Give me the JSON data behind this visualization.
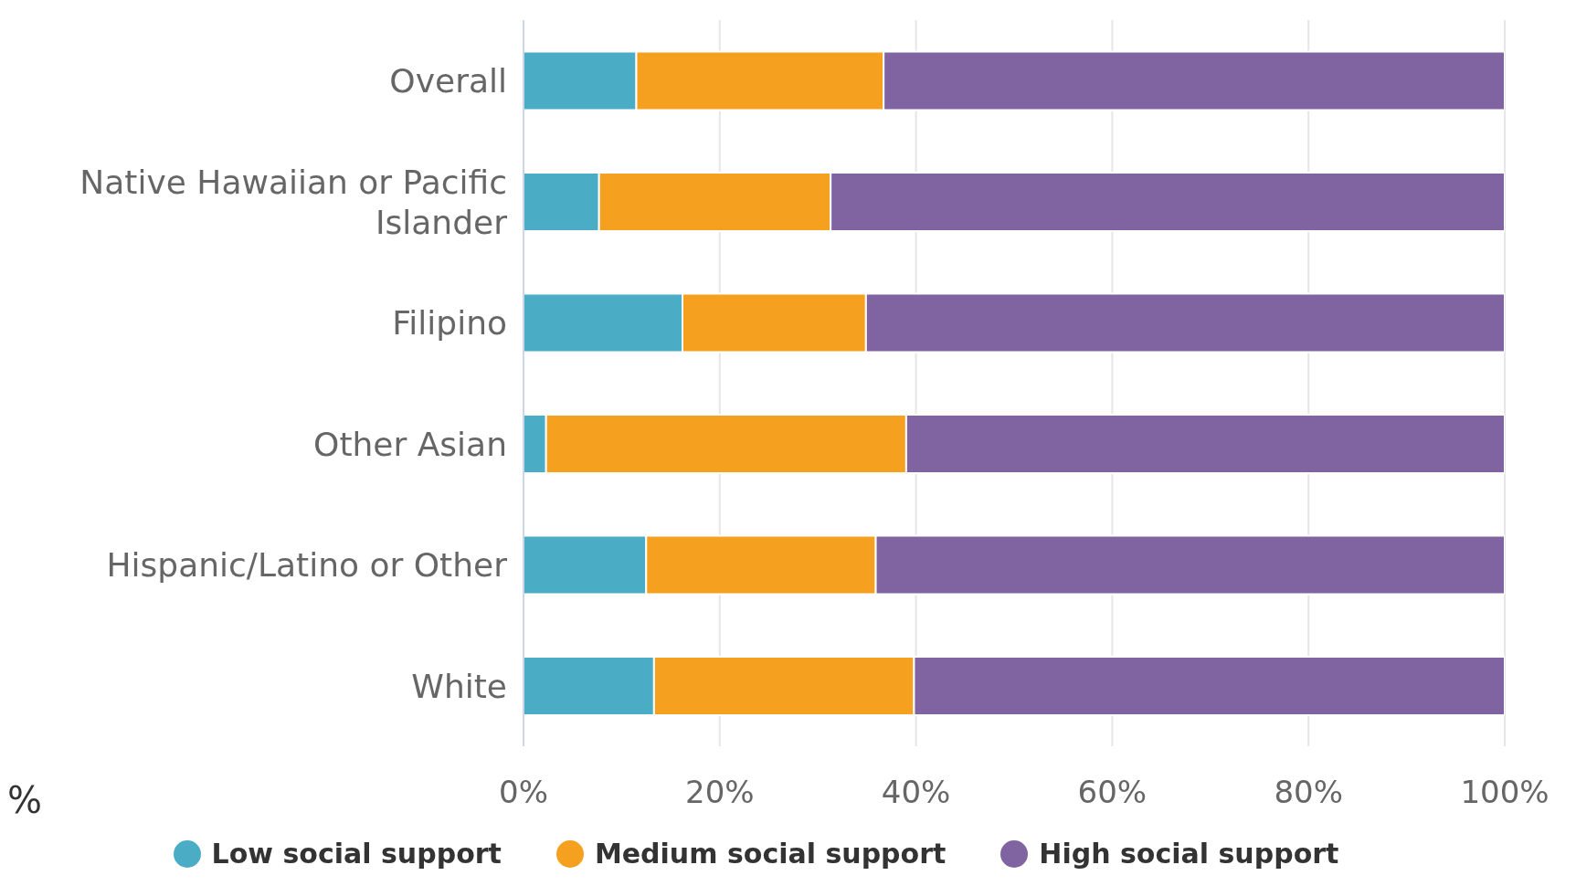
{
  "chart_data": {
    "type": "bar",
    "orientation": "horizontal",
    "stacked": true,
    "categories": [
      "Overall",
      "Native Hawaiian or Pacific Islander",
      "Filipino",
      "Other Asian",
      "Hispanic/Latino or Other",
      "White"
    ],
    "series": [
      {
        "name": "Low social support",
        "color": "#4bacc6",
        "values": [
          11.5,
          7.7,
          16.2,
          2.3,
          12.5,
          13.3
        ]
      },
      {
        "name": "Medium social support",
        "color": "#f5a01e",
        "values": [
          25.2,
          23.6,
          18.7,
          36.7,
          23.4,
          26.5
        ]
      },
      {
        "name": "High social support",
        "color": "#8064a2",
        "values": [
          63.3,
          68.7,
          65.1,
          61.0,
          64.1,
          60.2
        ]
      }
    ],
    "xlim": [
      0,
      100
    ],
    "xticks": [
      {
        "value": 0,
        "label": "0%"
      },
      {
        "value": 20,
        "label": "20%"
      },
      {
        "value": 40,
        "label": "40%"
      },
      {
        "value": 60,
        "label": "60%"
      },
      {
        "value": 80,
        "label": "80%"
      },
      {
        "value": 100,
        "label": "100%"
      }
    ],
    "grid": "x",
    "legend": "bottom",
    "annotations": [
      "%"
    ]
  }
}
